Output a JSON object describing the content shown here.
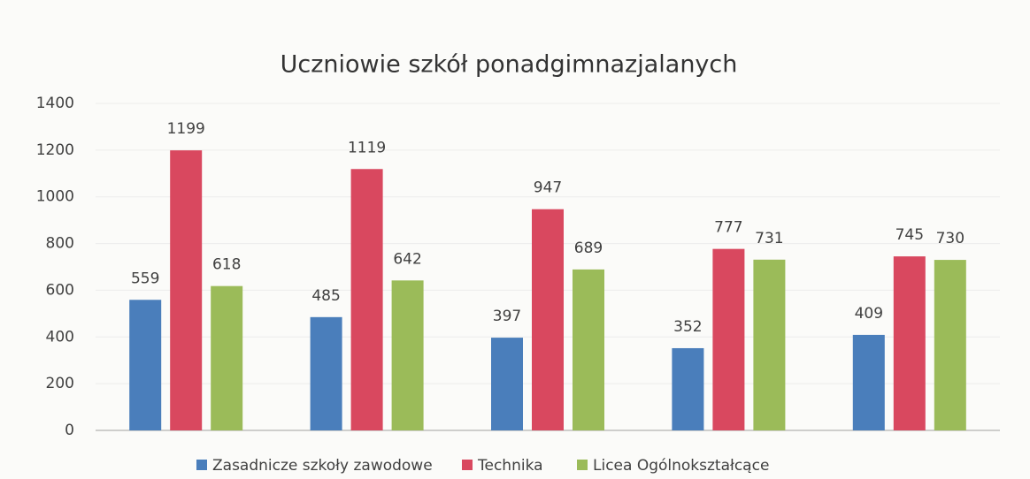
{
  "chart_data": {
    "type": "bar",
    "title": "Uczniowie szkół ponadgimnazjalanych",
    "categories": [
      null,
      null,
      null,
      null,
      null
    ],
    "series": [
      {
        "name": "Zasadnicze szkoły zawodowe",
        "color": "#4a7ebb",
        "values": [
          559,
          485,
          397,
          352,
          409
        ]
      },
      {
        "name": "Technika",
        "color": "#d9485f",
        "values": [
          1199,
          1119,
          947,
          777,
          745
        ]
      },
      {
        "name": "Licea Ogólnokształcące",
        "color": "#9bbb59",
        "values": [
          618,
          642,
          689,
          731,
          730
        ]
      }
    ],
    "ylim": [
      0,
      1400
    ],
    "yticks": [
      0,
      200,
      400,
      600,
      800,
      1000,
      1200,
      1400
    ],
    "grid": true,
    "legend": "bottom"
  }
}
